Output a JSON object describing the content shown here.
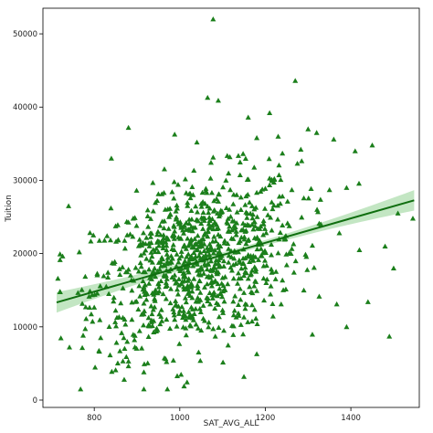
{
  "chart_data": {
    "type": "scatter",
    "title": "",
    "xlabel": "SAT_AVG_ALL",
    "ylabel": "Tuition",
    "xlim": [
      680,
      1560
    ],
    "ylim": [
      -1000,
      53500
    ],
    "xticks": [
      800,
      1000,
      1200,
      1400
    ],
    "yticks": [
      0,
      10000,
      20000,
      30000,
      40000,
      50000
    ],
    "grid": false,
    "legend": "none",
    "marker": "triangle",
    "color": "#1b7f1b",
    "band_color": "#b9e2b9",
    "regression": {
      "slope": 16.67,
      "intercept": 1467,
      "x_range": [
        712,
        1548
      ],
      "ci_half_width_at_ends": 1400,
      "ci_half_width_at_center": 350
    },
    "n_points": 1000,
    "points": [
      [
        1078,
        52000
      ],
      [
        1270,
        43600
      ],
      [
        1065,
        41300
      ],
      [
        1090,
        40900
      ],
      [
        1210,
        39200
      ],
      [
        1160,
        38600
      ],
      [
        1300,
        37000
      ],
      [
        1320,
        36500
      ],
      [
        880,
        37200
      ],
      [
        1040,
        35200
      ],
      [
        1450,
        34800
      ],
      [
        1360,
        35600
      ],
      [
        1410,
        34000
      ],
      [
        1230,
        36000
      ],
      [
        1180,
        35800
      ],
      [
        840,
        33000
      ],
      [
        1510,
        25500
      ],
      [
        1545,
        24800
      ],
      [
        1490,
        8700
      ],
      [
        1500,
        18000
      ],
      [
        740,
        26500
      ],
      [
        715,
        16600
      ],
      [
        780,
        12700
      ],
      [
        815,
        8500
      ],
      [
        860,
        6700
      ],
      [
        880,
        5300
      ],
      [
        850,
        4100
      ],
      [
        870,
        2800
      ],
      [
        1010,
        1900
      ],
      [
        1150,
        3200
      ],
      [
        1180,
        6300
      ],
      [
        1390,
        10000
      ],
      [
        1440,
        13400
      ],
      [
        1330,
        24000
      ],
      [
        1350,
        28700
      ],
      [
        1275,
        32300
      ],
      [
        1420,
        20500
      ],
      [
        1480,
        21000
      ],
      [
        1390,
        29000
      ],
      [
        1290,
        15000
      ]
    ]
  }
}
